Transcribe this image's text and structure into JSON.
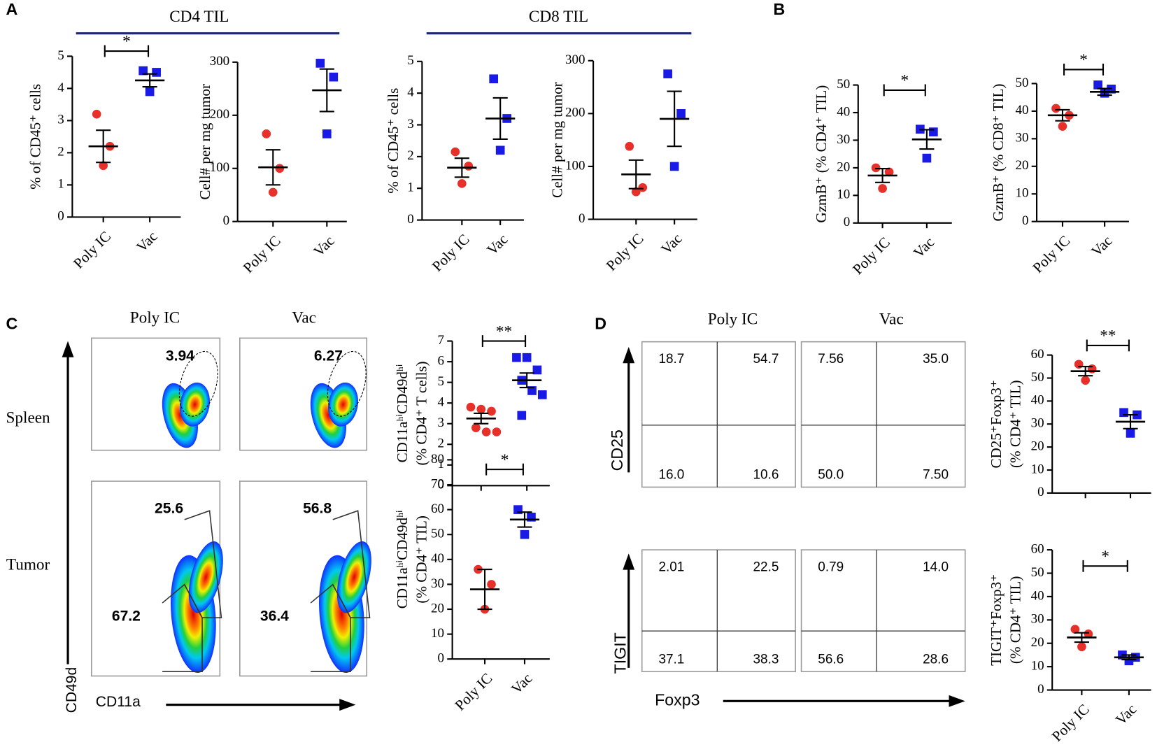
{
  "panels": [
    "A",
    "B",
    "C",
    "D"
  ],
  "headers": [
    "CD4 TIL",
    "CD8 TIL"
  ],
  "chart_data": [
    {
      "type": "dot",
      "ylabel": [
        "% of CD45⁺ cells"
      ],
      "categories": [
        "Poly IC",
        "Vac"
      ],
      "values": [
        [
          3.2,
          2.2,
          1.6
        ],
        [
          4.55,
          4.5,
          3.9
        ]
      ],
      "means": [
        2.2,
        4.25
      ],
      "sems": [
        0.5,
        0.2
      ],
      "colors": [
        "#e8302a",
        "#1a1ae6"
      ],
      "markers": [
        "circle",
        "square"
      ],
      "ylim": [
        0,
        5
      ],
      "yticks": [
        0,
        1,
        2,
        3,
        4,
        5
      ],
      "significance": "*"
    },
    {
      "type": "dot",
      "ylabel": [
        "Cell# per mg tumor"
      ],
      "categories": [
        "Poly IC",
        "Vac"
      ],
      "values": [
        [
          165,
          100,
          55
        ],
        [
          298,
          272,
          165
        ]
      ],
      "means": [
        102,
        247
      ],
      "sems": [
        33,
        40
      ],
      "colors": [
        "#e8302a",
        "#1a1ae6"
      ],
      "markers": [
        "circle",
        "square"
      ],
      "ylim": [
        0,
        300
      ],
      "yticks": [
        0,
        100,
        200,
        300
      ]
    },
    {
      "type": "dot",
      "ylabel": [
        "% of CD45⁺ cells"
      ],
      "categories": [
        "Poly IC",
        "Vac"
      ],
      "values": [
        [
          2.15,
          1.7,
          1.15
        ],
        [
          4.45,
          3.2,
          2.2
        ]
      ],
      "means": [
        1.65,
        3.2
      ],
      "sems": [
        0.3,
        0.65
      ],
      "colors": [
        "#e8302a",
        "#1a1ae6"
      ],
      "markers": [
        "circle",
        "square"
      ],
      "ylim": [
        0,
        5
      ],
      "yticks": [
        0,
        1,
        2,
        3,
        4,
        5
      ]
    },
    {
      "type": "dot",
      "ylabel": [
        "Cell# per mg tumor"
      ],
      "categories": [
        "Poly IC",
        "Vac"
      ],
      "values": [
        [
          138,
          60,
          52
        ],
        [
          275,
          200,
          100
        ]
      ],
      "means": [
        85,
        190
      ],
      "sems": [
        27,
        52
      ],
      "colors": [
        "#e8302a",
        "#1a1ae6"
      ],
      "markers": [
        "circle",
        "square"
      ],
      "ylim": [
        0,
        300
      ],
      "yticks": [
        0,
        100,
        200,
        300
      ]
    },
    {
      "type": "dot",
      "ylabel": [
        "GzmB⁺ (% CD4⁺ TIL)"
      ],
      "categories": [
        "Poly IC",
        "Vac"
      ],
      "values": [
        [
          20,
          18.5,
          12.5
        ],
        [
          34,
          33,
          23.5
        ]
      ],
      "means": [
        17.2,
        30.3
      ],
      "sems": [
        2.5,
        3.5
      ],
      "colors": [
        "#e8302a",
        "#1a1ae6"
      ],
      "markers": [
        "circle",
        "square"
      ],
      "ylim": [
        0,
        50
      ],
      "yticks": [
        0,
        10,
        20,
        30,
        40,
        50
      ],
      "significance": "*"
    },
    {
      "type": "dot",
      "ylabel": [
        "GzmB⁺ (% CD8⁺ TIL)"
      ],
      "categories": [
        "Poly IC",
        "Vac"
      ],
      "values": [
        [
          41,
          38.5,
          34.5
        ],
        [
          49.5,
          48,
          46.5
        ]
      ],
      "means": [
        38.5,
        47
      ],
      "sems": [
        2,
        1.2
      ],
      "colors": [
        "#e8302a",
        "#1a1ae6"
      ],
      "markers": [
        "circle",
        "square"
      ],
      "ylim": [
        0,
        50
      ],
      "yticks": [
        0,
        10,
        20,
        30,
        40,
        50
      ],
      "significance": "*"
    },
    {
      "type": "dot",
      "ylabel": [
        "CD11aʰⁱCD49dʰⁱ",
        "(% CD4⁺ T cells)"
      ],
      "categories": [
        null,
        null
      ],
      "values": [
        [
          3.8,
          3.7,
          3.6,
          2.8,
          2.6,
          2.6
        ],
        [
          6.2,
          6.2,
          5.6,
          5.1,
          4.6,
          4.4,
          3.4
        ]
      ],
      "means": [
        3.25,
        5.1
      ],
      "sems": [
        0.25,
        0.35
      ],
      "colors": [
        "#e8302a",
        "#1a1ae6"
      ],
      "markers": [
        "circle",
        "square"
      ],
      "ylim": [
        0,
        7
      ],
      "yticks": [
        0,
        1,
        2,
        3,
        4,
        5,
        6,
        7
      ],
      "significance": "**"
    },
    {
      "type": "dot",
      "ylabel": [
        "CD11aʰⁱCD49dʰⁱ",
        "(% CD4⁺ TIL)"
      ],
      "categories": [
        "Poly IC",
        "Vac"
      ],
      "values": [
        [
          36,
          30,
          20
        ],
        [
          60,
          57,
          50
        ]
      ],
      "means": [
        28,
        56
      ],
      "sems": [
        8,
        3
      ],
      "colors": [
        "#e8302a",
        "#1a1ae6"
      ],
      "markers": [
        "circle",
        "square"
      ],
      "ylim": [
        0,
        80
      ],
      "yticks": [
        0,
        10,
        20,
        30,
        40,
        50,
        60,
        70,
        80
      ],
      "significance": "*"
    },
    {
      "type": "dot",
      "ylabel": [
        "CD25⁺Foxp3⁺",
        "(% CD4⁺ TIL)"
      ],
      "categories": [
        null,
        null
      ],
      "values": [
        [
          56,
          54,
          49
        ],
        [
          35,
          34,
          26
        ]
      ],
      "means": [
        53,
        31
      ],
      "sems": [
        2,
        3
      ],
      "colors": [
        "#e8302a",
        "#1a1ae6"
      ],
      "markers": [
        "circle",
        "square"
      ],
      "ylim": [
        0,
        60
      ],
      "yticks": [
        0,
        10,
        20,
        30,
        40,
        50,
        60
      ],
      "significance": "**"
    },
    {
      "type": "dot",
      "ylabel": [
        "TIGIT⁺Foxp3⁺",
        "(% CD4⁺ TIL)"
      ],
      "categories": [
        "Poly IC",
        "Vac"
      ],
      "values": [
        [
          26,
          24,
          18.5
        ],
        [
          15,
          14,
          12.5
        ]
      ],
      "means": [
        22.5,
        14
      ],
      "sems": [
        2,
        1
      ],
      "colors": [
        "#e8302a",
        "#1a1ae6"
      ],
      "markers": [
        "circle",
        "square"
      ],
      "ylim": [
        0,
        60
      ],
      "yticks": [
        0,
        10,
        20,
        30,
        40,
        50,
        60
      ],
      "significance": "*"
    }
  ],
  "flow_c": {
    "columns": [
      "Poly IC",
      "Vac"
    ],
    "rows": [
      "Spleen",
      "Tumor"
    ],
    "y_axis": "CD49d",
    "x_axis": "CD11a",
    "spleen": [
      "3.94",
      "6.27"
    ],
    "tumor_upper": [
      "25.6",
      "56.8"
    ],
    "tumor_lower": [
      "67.2",
      "36.4"
    ]
  },
  "flow_d": {
    "columns": [
      "Poly IC",
      "Vac"
    ],
    "y_axes": [
      "CD25",
      "TIGIT"
    ],
    "x_axis": "Foxp3",
    "cd25": [
      [
        "18.7",
        "54.7",
        "16.0",
        "10.6"
      ],
      [
        "7.56",
        "35.0",
        "50.0",
        "7.50"
      ]
    ],
    "tigit": [
      [
        "2.01",
        "22.5",
        "37.1",
        "38.3"
      ],
      [
        "0.79",
        "14.0",
        "56.6",
        "28.6"
      ]
    ]
  }
}
